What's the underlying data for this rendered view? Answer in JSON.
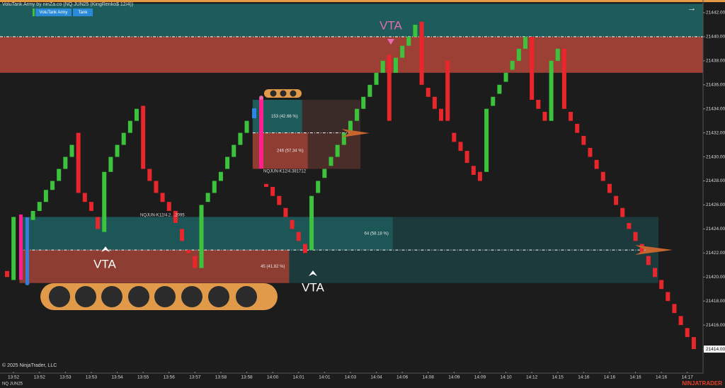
{
  "chart_data": {
    "type": "candlestick",
    "title": "VoluTank Army by ninZa.co (NQ JUN25 (KingRenko$ 12/4))",
    "buttons": [
      "VoluTank Army",
      "Tank"
    ],
    "instrument": "NQ JUN25",
    "copyright": "© 2025 NinjaTrader, LLC",
    "brand": "NINJATRADER",
    "vta_labels": [
      "VTA",
      "VTA",
      "VTA"
    ],
    "zone_tags": [
      "NQJUN-K12/4.381712",
      "NQJUN-K12/4.2…2095"
    ],
    "last_price_label": "21414.00",
    "up_color": "#3cc23c",
    "down_color": "#e8262b",
    "ylim": [
      21413,
      21443.06
    ],
    "yticks": [
      {
        "value": 21414,
        "label": "21414.00"
      },
      {
        "value": 21416,
        "label": "21416.00"
      },
      {
        "value": 21418,
        "label": "21418.00"
      },
      {
        "value": 21420,
        "label": "21420.00"
      },
      {
        "value": 21422,
        "label": "21422.00"
      },
      {
        "value": 21424,
        "label": "21424.00"
      },
      {
        "value": 21426,
        "label": "21426.00"
      },
      {
        "value": 21428,
        "label": "21428.00"
      },
      {
        "value": 21430,
        "label": "21430.00"
      },
      {
        "value": 21432,
        "label": "21432.00"
      },
      {
        "value": 21434,
        "label": "21434.00"
      },
      {
        "value": 21436,
        "label": "21436.00"
      },
      {
        "value": 21438,
        "label": "21438.00"
      },
      {
        "value": 21440,
        "label": "21440.00"
      },
      {
        "value": 21442,
        "label": "21442.00"
      }
    ],
    "zones": [
      {
        "top": 21442.75,
        "split": 21440,
        "bottom": 21437,
        "from": 0,
        "to": 106,
        "colors": [
          "#1e5b5b",
          "#9c4035"
        ]
      },
      {
        "top": 21434.75,
        "split": 21432,
        "bottom": 21429,
        "from": 39,
        "to": 45,
        "ext": 54,
        "colors": [
          "#1e5c5c",
          "#8f3d33",
          "#3a2a28",
          "#4a2c29"
        ],
        "upper_label": "153 (42.66 %)",
        "lower_label": "246 (57.34 %)"
      },
      {
        "top": 21425,
        "split": 21422.25,
        "bottom": 21419.5,
        "from": 3,
        "to": 59,
        "lower_to": 43,
        "ext": 100,
        "colors": [
          "#1c5656",
          "#8e3d33",
          "#1c3a3c",
          "#1c3a3c"
        ],
        "upper_label": "64 (58.18 %)",
        "lower_label": "45 (41.82 %)"
      }
    ],
    "categories": [
      null,
      "13:52",
      null,
      null,
      null,
      "13:52",
      null,
      null,
      null,
      "13:53",
      null,
      null,
      null,
      "13:53",
      null,
      null,
      null,
      "13:54",
      null,
      null,
      null,
      "13:55",
      null,
      null,
      null,
      "13:56",
      null,
      null,
      null,
      "13:57",
      null,
      null,
      null,
      "13:58",
      null,
      null,
      null,
      "13:58",
      null,
      null,
      null,
      "14:00",
      null,
      null,
      null,
      "14:01",
      null,
      null,
      null,
      "14:01",
      null,
      null,
      null,
      "14:03",
      null,
      null,
      null,
      "14:04",
      null,
      null,
      null,
      "14:06",
      null,
      null,
      null,
      "14:08",
      null,
      null,
      null,
      "14:09",
      null,
      null,
      null,
      "14:09",
      null,
      null,
      null,
      "14:10",
      null,
      null,
      null,
      "14:12",
      null,
      null,
      null,
      "14:15",
      null,
      null,
      null,
      "14:16",
      null,
      null,
      null,
      "14:16",
      null,
      null,
      null,
      "14:16",
      null,
      null,
      null,
      "14:16",
      null,
      null,
      null,
      "14:17",
      null
    ],
    "open": [
      21420.5,
      21419.75,
      null,
      null,
      21424.75,
      21425.5,
      21426.25,
      21427.25,
      21428,
      21429,
      21430,
      21432,
      21427,
      21426.25,
      21425,
      21423.75,
      21428.75,
      21430,
      21431,
      21432,
      21433,
      21434.25,
      21429,
      21428,
      21427,
      21426.25,
      21425.5,
      21424,
      21422.25,
      21421.75,
      21420.75,
      21426.25,
      21427,
      21428,
      21429,
      21430,
      21431,
      21432,
      null,
      null,
      21427.75,
      21427.5,
      21426.75,
      21425.75,
      21424.75,
      21423.75,
      21422.75,
      21422.25,
      21427,
      21428.25,
      21429.25,
      21430,
      21431,
      21432,
      21433,
      21434,
      21435,
      21436,
      21437,
      21438.5,
      21437,
      21438.25,
      21439.25,
      21440,
      21441.25,
      21435.75,
      21435,
      21434,
      21438,
      21432,
      21431.25,
      21430.5,
      21429.25,
      21428.75,
      21428.75,
      21434.25,
      21435.25,
      21436.25,
      21437.25,
      21438,
      21439,
      21440,
      21434.75,
      21433.75,
      21433,
      21438,
      21439,
      21433.75,
      21432.75,
      21431.75,
      21430.75,
      21429.75,
      21428.75,
      21427.75,
      21426.75,
      21425.75,
      21424.5,
      21423.75,
      21422.75,
      21421.75,
      21420.75,
      21419.75,
      21418.75,
      21417.75,
      21416.75,
      21415.75,
      21415
    ],
    "close": [
      21420,
      21425,
      null,
      null,
      21425.5,
      21426.25,
      21427.25,
      21428,
      21429,
      21430,
      21431,
      21427,
      21426.25,
      21425.5,
      21424,
      21428.75,
      21430,
      21431,
      21432,
      21433,
      21434,
      21429,
      21428,
      21427,
      21426.25,
      21425.5,
      21424.5,
      21423,
      21422,
      21420.75,
      21426,
      21427,
      21428,
      21428.75,
      21430,
      21431,
      21432,
      21433,
      null,
      null,
      21427.5,
      21426.75,
      21426,
      21425,
      21424,
      21423,
      21422,
      21426.75,
      21428,
      21429,
      21430,
      21431,
      21432,
      21433,
      21434,
      21435,
      21436,
      21437,
      21438,
      21433,
      21438.25,
      21439.25,
      21440,
      21441,
      21436,
      21435,
      21434,
      21433,
      21433,
      21431.25,
      21430.5,
      21429.5,
      21428.5,
      21428,
      21434,
      21435,
      21436,
      21437,
      21438,
      21439,
      21440,
      21434.75,
      21434,
      21433,
      21438,
      21439,
      21434,
      21433,
      21432,
      21431,
      21430,
      21429,
      21428,
      21427,
      21426,
      21425,
      21424,
      21423,
      21422,
      21421,
      21420,
      21419,
      21418,
      21417,
      21416,
      21415,
      21414
    ]
  }
}
